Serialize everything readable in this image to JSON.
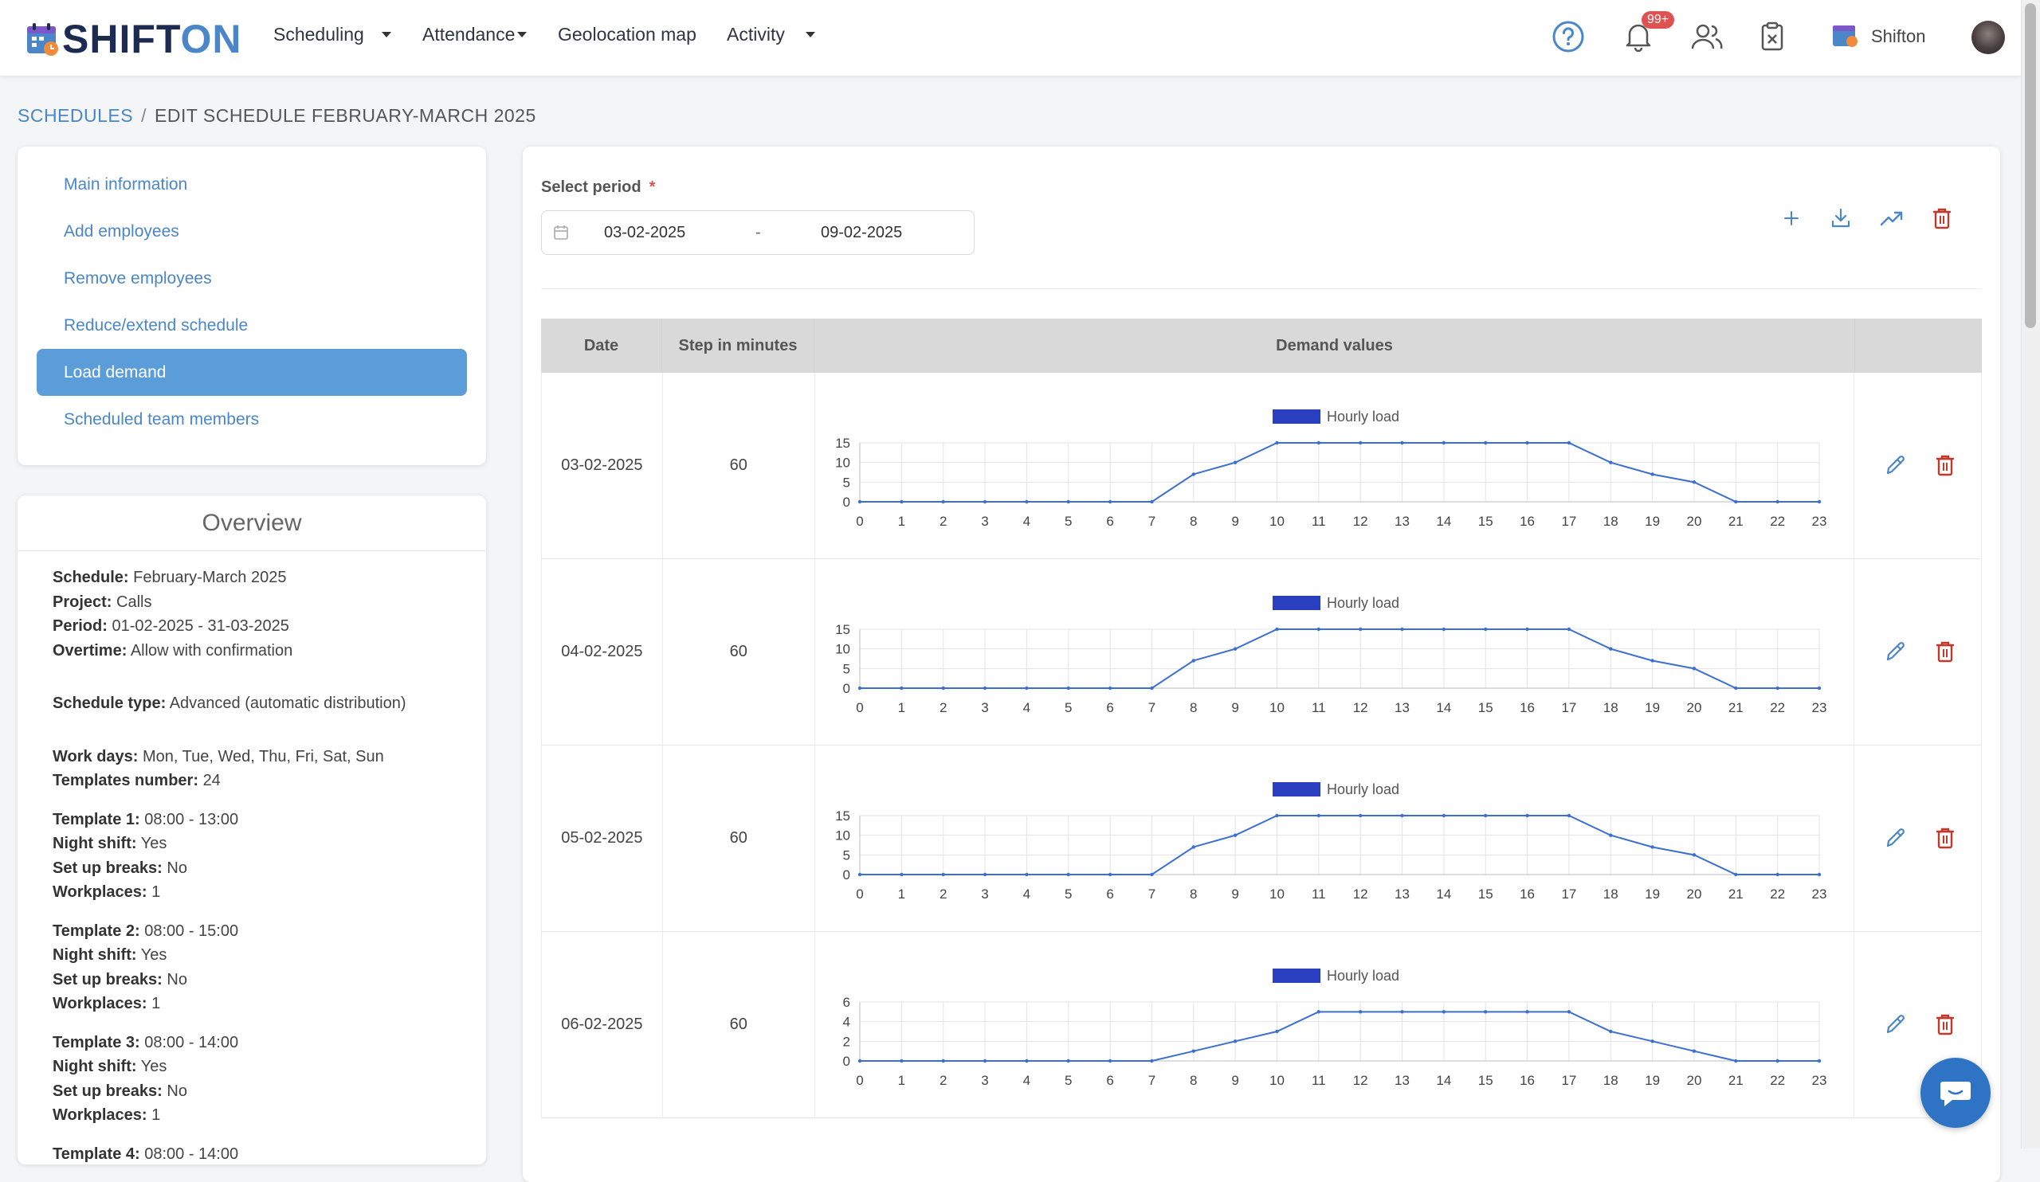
{
  "app": {
    "logo_shift": "SHIFT",
    "logo_on": "ON",
    "nav": {
      "scheduling": "Scheduling",
      "attendance": "Attendance",
      "geolocation": "Geolocation map",
      "activity": "Activity"
    },
    "notifications_badge": "99+",
    "company": "Shifton",
    "company_logo_text": "SHIFTON"
  },
  "breadcrumb": {
    "parent": "SCHEDULES",
    "separator": "/",
    "current": "EDIT SCHEDULE FEBRUARY-MARCH 2025"
  },
  "menu": {
    "items": [
      {
        "label": "Main information"
      },
      {
        "label": "Add employees"
      },
      {
        "label": "Remove employees"
      },
      {
        "label": "Reduce/extend schedule"
      },
      {
        "label": "Load demand"
      },
      {
        "label": "Scheduled team members"
      }
    ],
    "active_index": 4
  },
  "overview": {
    "title": "Overview",
    "schedule_label": "Schedule:",
    "schedule": "February-March 2025",
    "project_label": "Project:",
    "project": "Calls",
    "period_label": "Period:",
    "period": "01-02-2025 - 31-03-2025",
    "overtime_label": "Overtime:",
    "overtime": "Allow with confirmation",
    "type_label": "Schedule type:",
    "type": "Advanced (automatic distribution)",
    "workdays_label": "Work days:",
    "workdays": "Mon, Tue, Wed, Thu, Fri, Sat, Sun",
    "templates_label": "Templates number:",
    "templates": "24",
    "night_label": "Night shift:",
    "breaks_label": "Set up breaks:",
    "workplaces_label": "Workplaces:",
    "template_list": [
      {
        "label": "Template 1:",
        "time": "08:00 - 13:00",
        "night": "Yes",
        "breaks": "No",
        "workplaces": "1"
      },
      {
        "label": "Template 2:",
        "time": "08:00 - 15:00",
        "night": "Yes",
        "breaks": "No",
        "workplaces": "1"
      },
      {
        "label": "Template 3:",
        "time": "08:00 - 14:00",
        "night": "Yes",
        "breaks": "No",
        "workplaces": "1"
      },
      {
        "label": "Template 4:",
        "time": "08:00 - 14:00"
      }
    ]
  },
  "period": {
    "label": "Select period",
    "required_mark": "*",
    "from": "03-02-2025",
    "separator": "-",
    "to": "09-02-2025"
  },
  "table": {
    "headers": {
      "date": "Date",
      "step": "Step in minutes",
      "demand": "Demand values"
    }
  },
  "colors": {
    "primary": "#4a86c8",
    "active_menu": "#5b9dd9",
    "danger": "#c0392b",
    "series": "#2a3fbf",
    "line": "#3c6fd0"
  },
  "chart_data": [
    {
      "type": "line",
      "date": "03-02-2025",
      "step": "60",
      "legend": "Hourly load",
      "x": [
        0,
        1,
        2,
        3,
        4,
        5,
        6,
        7,
        8,
        9,
        10,
        11,
        12,
        13,
        14,
        15,
        16,
        17,
        18,
        19,
        20,
        21,
        22,
        23
      ],
      "values": [
        0,
        0,
        0,
        0,
        0,
        0,
        0,
        0,
        7,
        10,
        15,
        15,
        15,
        15,
        15,
        15,
        15,
        15,
        10,
        7,
        5,
        0,
        0,
        0
      ],
      "ylim": [
        0,
        15
      ],
      "yticks": [
        0,
        5,
        10,
        15
      ]
    },
    {
      "type": "line",
      "date": "04-02-2025",
      "step": "60",
      "legend": "Hourly load",
      "x": [
        0,
        1,
        2,
        3,
        4,
        5,
        6,
        7,
        8,
        9,
        10,
        11,
        12,
        13,
        14,
        15,
        16,
        17,
        18,
        19,
        20,
        21,
        22,
        23
      ],
      "values": [
        0,
        0,
        0,
        0,
        0,
        0,
        0,
        0,
        7,
        10,
        15,
        15,
        15,
        15,
        15,
        15,
        15,
        15,
        10,
        7,
        5,
        0,
        0,
        0
      ],
      "ylim": [
        0,
        15
      ],
      "yticks": [
        0,
        5,
        10,
        15
      ]
    },
    {
      "type": "line",
      "date": "05-02-2025",
      "step": "60",
      "legend": "Hourly load",
      "x": [
        0,
        1,
        2,
        3,
        4,
        5,
        6,
        7,
        8,
        9,
        10,
        11,
        12,
        13,
        14,
        15,
        16,
        17,
        18,
        19,
        20,
        21,
        22,
        23
      ],
      "values": [
        0,
        0,
        0,
        0,
        0,
        0,
        0,
        0,
        7,
        10,
        15,
        15,
        15,
        15,
        15,
        15,
        15,
        15,
        10,
        7,
        5,
        0,
        0,
        0
      ],
      "ylim": [
        0,
        15
      ],
      "yticks": [
        0,
        5,
        10,
        15
      ]
    },
    {
      "type": "line",
      "date": "06-02-2025",
      "step": "60",
      "legend": "Hourly load",
      "x": [
        0,
        1,
        2,
        3,
        4,
        5,
        6,
        7,
        8,
        9,
        10,
        11,
        12,
        13,
        14,
        15,
        16,
        17,
        18,
        19,
        20,
        21,
        22,
        23
      ],
      "values": [
        0,
        0,
        0,
        0,
        0,
        0,
        0,
        0,
        1,
        2,
        3,
        5,
        5,
        5,
        5,
        5,
        5,
        5,
        3,
        2,
        1,
        0,
        0,
        0
      ],
      "ylim": [
        0,
        6
      ],
      "yticks": [
        0,
        2,
        4,
        6
      ]
    }
  ]
}
